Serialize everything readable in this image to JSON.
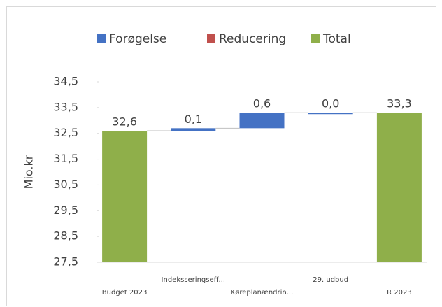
{
  "chart_data": {
    "type": "waterfall",
    "categories": [
      "Budget 2023",
      "Indeksseringseff...",
      "Køreplanændrin...",
      "29. udbud",
      "R 2023"
    ],
    "series": [
      {
        "name": "Forøgelse",
        "color": "#4472c4",
        "values": [
          null,
          0.1,
          0.6,
          0.0,
          null
        ],
        "value_labels": [
          null,
          "0,1",
          "0,6",
          "0,0",
          null
        ]
      },
      {
        "name": "Reducering",
        "color": "#c0504d",
        "values": [
          null,
          null,
          null,
          null,
          null
        ]
      },
      {
        "name": "Total",
        "color": "#8faf4a",
        "values": [
          32.6,
          null,
          null,
          null,
          33.3
        ],
        "value_labels": [
          "32,6",
          null,
          null,
          null,
          "33,3"
        ]
      }
    ],
    "ylabel": "Mio.kr",
    "ylim": [
      27.5,
      34.5
    ],
    "yticks": [
      {
        "value": 27.5,
        "label": "27,5"
      },
      {
        "value": 28.5,
        "label": "28,5"
      },
      {
        "value": 29.5,
        "label": "29,5"
      },
      {
        "value": 30.5,
        "label": "30,5"
      },
      {
        "value": 31.5,
        "label": "31,5"
      },
      {
        "value": 32.5,
        "label": "32,5"
      },
      {
        "value": 33.5,
        "label": "33,5"
      },
      {
        "value": 34.5,
        "label": "34,5"
      }
    ]
  }
}
